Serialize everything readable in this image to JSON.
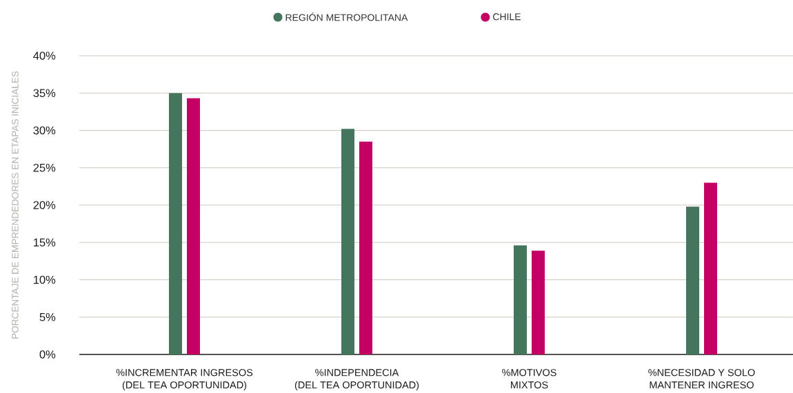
{
  "chart_data": {
    "type": "bar",
    "ylabel": "PORCENTAJE DE EMPRENDEDORES EN ETAPAS INICIALES",
    "categories": [
      "%INCREMENTAR INGRESOS (DEL TEA OPORTUNIDAD)",
      "%INDEPENDECIA (DEL TEA OPORTUNIDAD)",
      "%MOTIVOS MIXTOS",
      "%NECESIDAD Y SOLO MANTENER INGRESO"
    ],
    "series": [
      {
        "name": "REGIÓN METROPOLITANA",
        "color": "#43765c",
        "values": [
          35.0,
          30.2,
          14.6,
          19.8
        ]
      },
      {
        "name": "CHILE",
        "color": "#c40064",
        "values": [
          34.3,
          28.5,
          13.9,
          23.0
        ]
      }
    ],
    "ylim": [
      0,
      40
    ],
    "yticks": [
      {
        "value": 0,
        "label": "0%"
      },
      {
        "value": 5,
        "label": "5%"
      },
      {
        "value": 10,
        "label": "10%"
      },
      {
        "value": 15,
        "label": "15%"
      },
      {
        "value": 20,
        "label": "20%"
      },
      {
        "value": 25,
        "label": "25%"
      },
      {
        "value": 30,
        "label": "30%"
      },
      {
        "value": 35,
        "label": "35%"
      },
      {
        "value": 40,
        "label": "40%"
      }
    ],
    "grid": "y",
    "legend": "top"
  }
}
